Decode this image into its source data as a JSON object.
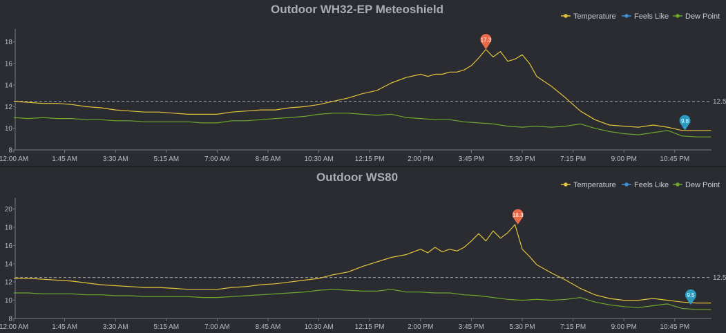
{
  "chart_data": [
    {
      "type": "line",
      "title": "Outdoor WH32-EP Meteoshield",
      "legend": [
        "Temperature",
        "Feels Like",
        "Dew Point"
      ],
      "legend_position": "top-right",
      "colors": {
        "temperature": "#e3c53c",
        "feels_like": "#3d8fd6",
        "dew_point": "#6fa82e",
        "max_pin": "#e96a4a",
        "min_pin": "#2d9bbf"
      },
      "x_tick_labels": [
        "12:00 AM",
        "1:45 AM",
        "3:30 AM",
        "5:15 AM",
        "7:00 AM",
        "8:45 AM",
        "10:30 AM",
        "12:15 PM",
        "2:00 PM",
        "3:45 PM",
        "5:30 PM",
        "7:15 PM",
        "9:00 PM",
        "10:45 PM"
      ],
      "x_range_hours": [
        0,
        24
      ],
      "ylim": [
        8,
        18.8
      ],
      "y_ticks": [
        8,
        10,
        12,
        14,
        16,
        18
      ],
      "reference_line": {
        "value": 12.5,
        "label": "12.5"
      },
      "max_marker": {
        "hour": 16.25,
        "value": 17.3,
        "label": "17.3"
      },
      "min_marker": {
        "hour": 23.1,
        "value": 9.8,
        "label": "9.8"
      },
      "series": [
        {
          "name": "Temperature",
          "x": [
            0,
            0.5,
            1,
            1.5,
            2,
            2.5,
            3,
            3.5,
            4,
            4.5,
            5,
            5.5,
            6,
            6.5,
            7,
            7.5,
            8,
            8.5,
            9,
            9.5,
            10,
            10.5,
            11,
            11.5,
            12,
            12.5,
            13,
            13.5,
            14,
            14.25,
            14.5,
            14.75,
            15,
            15.25,
            15.5,
            15.75,
            16,
            16.25,
            16.5,
            16.75,
            17,
            17.25,
            17.5,
            17.75,
            18,
            18.5,
            19,
            19.5,
            20,
            20.5,
            21,
            21.5,
            22,
            22.5,
            23,
            23.5,
            24
          ],
          "values": [
            12.5,
            12.4,
            12.3,
            12.3,
            12.2,
            12.0,
            11.9,
            11.7,
            11.6,
            11.5,
            11.5,
            11.4,
            11.3,
            11.3,
            11.3,
            11.5,
            11.6,
            11.7,
            11.7,
            11.9,
            12.0,
            12.2,
            12.5,
            12.8,
            13.2,
            13.5,
            14.2,
            14.7,
            15.0,
            14.8,
            15.0,
            15.0,
            15.2,
            15.2,
            15.4,
            15.8,
            16.5,
            17.3,
            16.6,
            17.1,
            16.2,
            16.4,
            16.8,
            16.0,
            14.8,
            13.9,
            12.8,
            11.6,
            10.8,
            10.3,
            10.2,
            10.1,
            10.3,
            10.1,
            9.8,
            9.8,
            9.8
          ]
        },
        {
          "name": "Dew Point",
          "x": [
            0,
            0.5,
            1,
            1.5,
            2,
            2.5,
            3,
            3.5,
            4,
            4.5,
            5,
            5.5,
            6,
            6.5,
            7,
            7.5,
            8,
            8.5,
            9,
            9.5,
            10,
            10.5,
            11,
            11.5,
            12,
            12.5,
            13,
            13.5,
            14,
            14.5,
            15,
            15.5,
            16,
            16.5,
            17,
            17.5,
            18,
            18.5,
            19,
            19.5,
            20,
            20.5,
            21,
            21.5,
            22,
            22.5,
            23,
            23.5,
            24
          ],
          "values": [
            11.0,
            10.9,
            11.0,
            10.9,
            10.9,
            10.8,
            10.8,
            10.7,
            10.7,
            10.6,
            10.6,
            10.6,
            10.6,
            10.5,
            10.5,
            10.7,
            10.7,
            10.8,
            10.9,
            11.0,
            11.1,
            11.3,
            11.4,
            11.4,
            11.3,
            11.2,
            11.3,
            11.0,
            10.9,
            10.8,
            10.8,
            10.6,
            10.5,
            10.4,
            10.2,
            10.1,
            10.2,
            10.1,
            10.2,
            10.4,
            10.0,
            9.7,
            9.5,
            9.4,
            9.6,
            9.8,
            9.3,
            9.2,
            9.2
          ]
        }
      ]
    },
    {
      "type": "line",
      "title": "Outdoor WS80",
      "legend": [
        "Temperature",
        "Feels Like",
        "Dew Point"
      ],
      "legend_position": "top-right",
      "colors": {
        "temperature": "#e3c53c",
        "feels_like": "#3d8fd6",
        "dew_point": "#6fa82e",
        "max_pin": "#e96a4a",
        "min_pin": "#2d9bbf"
      },
      "x_tick_labels": [
        "12:00 AM",
        "1:45 AM",
        "3:30 AM",
        "5:15 AM",
        "7:00 AM",
        "8:45 AM",
        "10:30 AM",
        "12:15 PM",
        "2:00 PM",
        "3:45 PM",
        "5:30 PM",
        "7:15 PM",
        "9:00 PM",
        "10:45 PM"
      ],
      "x_range_hours": [
        0,
        24
      ],
      "ylim": [
        8,
        20.8
      ],
      "y_ticks": [
        8,
        10,
        12,
        14,
        16,
        18,
        20
      ],
      "reference_line": {
        "value": 12.5,
        "label": "12.5"
      },
      "max_marker": {
        "hour": 17.35,
        "value": 18.3,
        "label": "18.3"
      },
      "min_marker": {
        "hour": 23.3,
        "value": 9.5,
        "label": "9.5"
      },
      "series": [
        {
          "name": "Temperature",
          "x": [
            0,
            0.5,
            1,
            1.5,
            2,
            2.5,
            3,
            3.5,
            4,
            4.5,
            5,
            5.5,
            6,
            6.5,
            7,
            7.5,
            8,
            8.5,
            9,
            9.5,
            10,
            10.5,
            11,
            11.5,
            12,
            12.5,
            13,
            13.5,
            14,
            14.25,
            14.5,
            14.75,
            15,
            15.25,
            15.5,
            15.75,
            16,
            16.25,
            16.5,
            16.75,
            17,
            17.25,
            17.5,
            17.75,
            18,
            18.5,
            19,
            19.5,
            20,
            20.5,
            21,
            21.5,
            22,
            22.5,
            23,
            23.5,
            24
          ],
          "values": [
            12.4,
            12.4,
            12.3,
            12.2,
            12.1,
            11.9,
            11.7,
            11.6,
            11.5,
            11.4,
            11.4,
            11.3,
            11.2,
            11.2,
            11.2,
            11.4,
            11.5,
            11.7,
            11.8,
            12.0,
            12.2,
            12.4,
            12.8,
            13.1,
            13.7,
            14.2,
            14.7,
            15.0,
            15.6,
            15.2,
            15.8,
            15.3,
            15.6,
            15.4,
            15.8,
            16.5,
            17.3,
            16.5,
            17.6,
            16.8,
            17.4,
            18.3,
            15.6,
            14.8,
            13.9,
            13.0,
            12.2,
            11.3,
            10.6,
            10.2,
            10.0,
            10.0,
            10.2,
            10.0,
            9.8,
            9.7,
            9.7
          ]
        },
        {
          "name": "Dew Point",
          "x": [
            0,
            0.5,
            1,
            1.5,
            2,
            2.5,
            3,
            3.5,
            4,
            4.5,
            5,
            5.5,
            6,
            6.5,
            7,
            7.5,
            8,
            8.5,
            9,
            9.5,
            10,
            10.5,
            11,
            11.5,
            12,
            12.5,
            13,
            13.5,
            14,
            14.5,
            15,
            15.5,
            16,
            16.5,
            17,
            17.5,
            18,
            18.5,
            19,
            19.5,
            20,
            20.5,
            21,
            21.5,
            22,
            22.5,
            23,
            23.5,
            24
          ],
          "values": [
            10.8,
            10.8,
            10.7,
            10.7,
            10.7,
            10.6,
            10.6,
            10.5,
            10.5,
            10.4,
            10.4,
            10.4,
            10.4,
            10.3,
            10.3,
            10.4,
            10.5,
            10.6,
            10.7,
            10.8,
            10.9,
            11.1,
            11.2,
            11.1,
            11.0,
            11.0,
            11.2,
            10.9,
            10.9,
            10.8,
            10.8,
            10.6,
            10.5,
            10.3,
            10.1,
            10.0,
            10.1,
            10.0,
            10.1,
            10.3,
            9.8,
            9.5,
            9.3,
            9.2,
            9.4,
            9.6,
            9.1,
            9.0,
            9.0
          ]
        }
      ]
    }
  ]
}
